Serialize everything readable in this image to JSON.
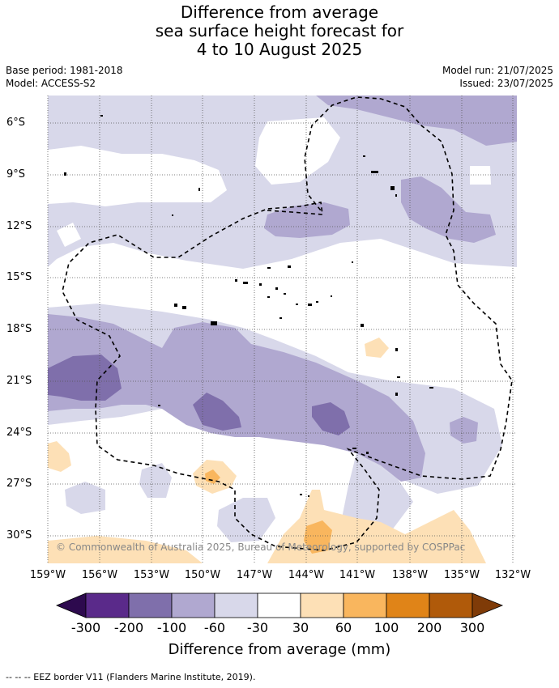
{
  "title": {
    "line1": "Difference from average",
    "line2": "sea surface height forecast for",
    "line3": "4 to 10 August 2025"
  },
  "meta": {
    "base_period": "Base period: 1981-2018",
    "model": "Model: ACCESS-S2",
    "model_run": "Model run: 21/07/2025",
    "issued": "Issued: 23/07/2025"
  },
  "map": {
    "lat_ticks": [
      "6°S",
      "9°S",
      "12°S",
      "15°S",
      "18°S",
      "21°S",
      "24°S",
      "27°S",
      "30°S"
    ],
    "lon_ticks": [
      "159°W",
      "156°W",
      "153°W",
      "150°W",
      "147°W",
      "144°W",
      "141°W",
      "138°W",
      "135°W",
      "132°W"
    ],
    "copyright": "© Commonwealth of Australia 2025, Bureau of Meteorology, supported by COSPPac",
    "land_color": "#000000",
    "eez_style": "dashed"
  },
  "colorbar": {
    "title": "Difference from average (mm)",
    "tick_labels": [
      "-300",
      "-200",
      "-100",
      "-60",
      "-30",
      "30",
      "60",
      "100",
      "200",
      "300"
    ],
    "colors": {
      "below_-300": "#2d0a4e",
      "-300_to_-200": "#5a2a8a",
      "-200_to_-100": "#7f6fab",
      "-100_to_-60": "#b0a8d0",
      "-60_to_-30": "#d8d8ea",
      "-30_to_30": "#ffffff",
      "30_to_60": "#fde0b6",
      "60_to_100": "#f9b65e",
      "100_to_200": "#e08418",
      "200_to_300": "#b05a0a",
      "above_300": "#7f3b08"
    }
  },
  "footnote": "--  --  -- EEZ border V11 (Flanders Marine Institute, 2019)."
}
